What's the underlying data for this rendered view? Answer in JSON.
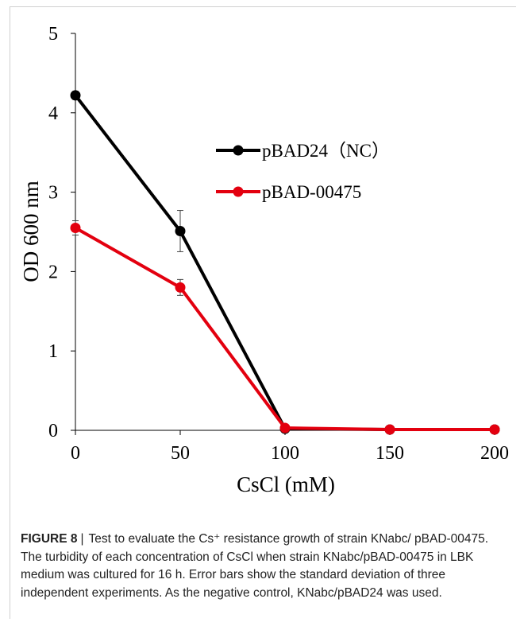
{
  "chart_data": {
    "type": "line",
    "xlabel": "CsCl (mM)",
    "ylabel": "OD 600 nm",
    "xlim": [
      0,
      200
    ],
    "ylim": [
      0,
      5
    ],
    "xticks": [
      0,
      50,
      100,
      150,
      200
    ],
    "yticks": [
      0,
      1,
      2,
      3,
      4,
      5
    ],
    "grid": false,
    "legend_position": "upper-right",
    "series": [
      {
        "name": "pBAD24（NC）",
        "color": "#000000",
        "x": [
          0,
          50,
          100,
          150,
          200
        ],
        "y": [
          4.22,
          2.51,
          0.02,
          0.01,
          0.01
        ],
        "error": [
          0.05,
          0.26,
          0.01,
          0.0,
          0.0
        ]
      },
      {
        "name": "pBAD-00475",
        "color": "#e3000f",
        "x": [
          0,
          50,
          100,
          150,
          200
        ],
        "y": [
          2.55,
          1.8,
          0.03,
          0.01,
          0.01
        ],
        "error": [
          0.09,
          0.1,
          0.01,
          0.0,
          0.0
        ]
      }
    ]
  },
  "caption": {
    "label": "FIGURE 8",
    "separator": "|",
    "text": "Test to evaluate the Cs⁺ resistance growth of strain KNabc/ pBAD-00475. The turbidity of each concentration of CsCl when strain KNabc/pBAD-00475 in LBK medium was cultured for 16 h. Error bars show the standard deviation of three independent experiments. As the negative control, KNabc/pBAD24 was used."
  }
}
